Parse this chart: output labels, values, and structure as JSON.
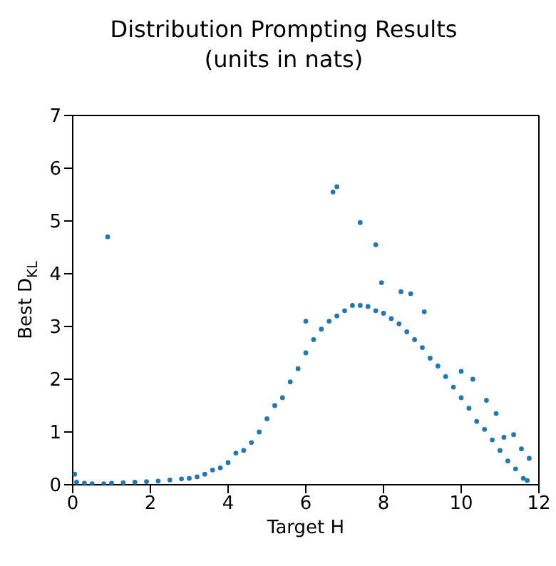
{
  "chart_data": {
    "type": "scatter",
    "title": "Distribution Prompting Results",
    "subtitle": "(units in nats)",
    "xlabel": "Target H",
    "ylabel": "Best D$_{KL}$",
    "xlim": [
      0,
      12
    ],
    "xticks": [
      0,
      2,
      4,
      6,
      8,
      10,
      12
    ],
    "ylim": [
      0,
      7
    ],
    "yticks": [
      0,
      1,
      2,
      3,
      4,
      5,
      6,
      7
    ],
    "marker": "circle",
    "series": [
      {
        "color": "#1f77b4",
        "x": [
          0.05,
          0.1,
          0.3,
          0.5,
          0.8,
          1.0,
          1.3,
          1.6,
          1.9,
          2.2,
          2.5,
          2.8,
          3.0,
          3.2,
          3.4,
          3.6,
          3.8,
          4.0,
          4.2,
          4.4,
          4.6,
          4.8,
          5.0,
          5.2,
          5.4,
          5.6,
          5.8,
          6.0,
          6.2,
          6.4,
          6.6,
          6.8,
          7.0,
          7.2,
          7.4,
          7.6,
          7.8,
          8.0,
          8.2,
          8.4,
          8.6,
          8.8,
          9.0,
          9.2,
          9.4,
          9.6,
          9.8,
          10.0,
          10.2,
          10.4,
          10.6,
          10.8,
          11.0,
          11.2,
          11.4,
          11.6,
          11.7,
          0.9,
          6.0,
          6.7,
          6.8,
          7.4,
          7.8,
          7.95,
          8.45,
          8.7,
          9.05,
          10.0,
          10.3,
          10.65,
          10.9,
          11.1,
          11.35,
          11.55,
          11.75
        ],
        "values": [
          0.2,
          0.05,
          0.03,
          0.02,
          0.02,
          0.03,
          0.04,
          0.05,
          0.06,
          0.07,
          0.09,
          0.11,
          0.12,
          0.15,
          0.2,
          0.28,
          0.32,
          0.42,
          0.6,
          0.65,
          0.8,
          1.0,
          1.25,
          1.5,
          1.65,
          1.95,
          2.2,
          2.5,
          2.75,
          2.95,
          3.1,
          3.2,
          3.3,
          3.4,
          3.4,
          3.38,
          3.3,
          3.25,
          3.15,
          3.05,
          2.9,
          2.75,
          2.6,
          2.4,
          2.25,
          2.05,
          1.85,
          1.65,
          1.45,
          1.2,
          1.05,
          0.85,
          0.65,
          0.45,
          0.3,
          0.12,
          0.08,
          4.7,
          3.1,
          5.55,
          5.65,
          4.97,
          4.55,
          3.83,
          3.66,
          3.62,
          3.28,
          2.15,
          2.0,
          1.6,
          1.35,
          0.9,
          0.95,
          0.68,
          0.5
        ]
      }
    ]
  }
}
